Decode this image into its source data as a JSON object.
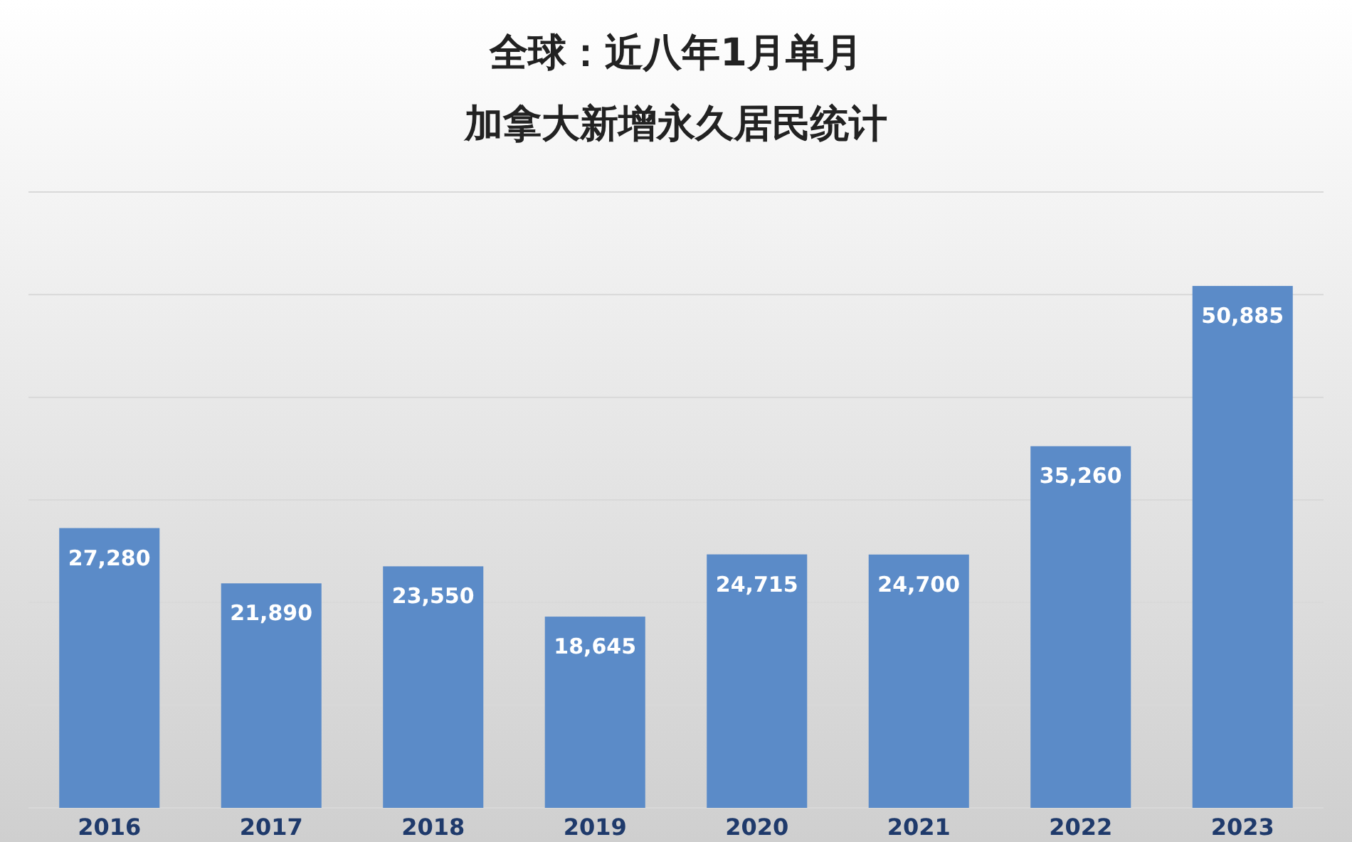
{
  "chart_data": {
    "type": "bar",
    "title": "全球：近八年1月单月",
    "subtitle": "加拿大新增永久居民统计",
    "categories": [
      "2016",
      "2017",
      "2018",
      "2019",
      "2020",
      "2021",
      "2022",
      "2023"
    ],
    "values": [
      27280,
      21890,
      23550,
      18645,
      24715,
      24700,
      35260,
      50885
    ],
    "color": "#5b8bc8",
    "value_labels": [
      "27,280",
      "21,890",
      "23,550",
      "18,645",
      "24,715",
      "24,700",
      "35,260",
      "50,885"
    ],
    "grid": "y"
  }
}
